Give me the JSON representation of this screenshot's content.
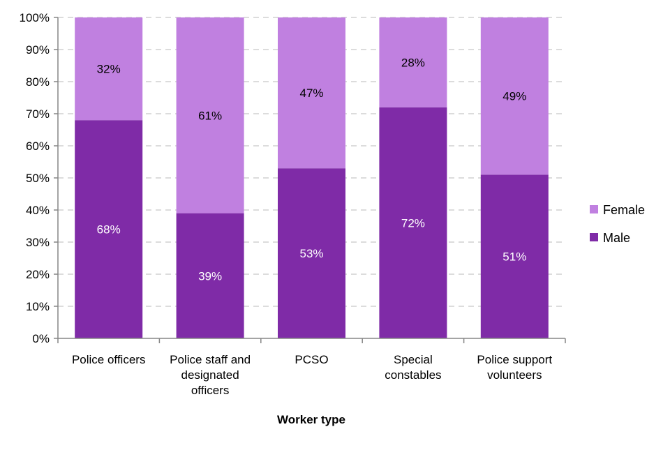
{
  "chart_data": {
    "type": "bar",
    "stacked": true,
    "percent_stacked": true,
    "categories": [
      [
        "Police officers"
      ],
      [
        "Police staff and",
        "designated",
        "officers"
      ],
      [
        "PCSO"
      ],
      [
        "Special",
        "constables"
      ],
      [
        "Police support",
        "volunteers"
      ]
    ],
    "series": [
      {
        "name": "Male",
        "values": [
          68,
          39,
          53,
          72,
          51
        ],
        "labels": [
          "68%",
          "39%",
          "53%",
          "72%",
          "51%"
        ],
        "color": "#7f2ba7",
        "label_color": "#ffffff"
      },
      {
        "name": "Female",
        "values": [
          32,
          61,
          47,
          28,
          49
        ],
        "labels": [
          "32%",
          "61%",
          "47%",
          "28%",
          "49%"
        ],
        "color": "#c080e0",
        "label_color": "#000000"
      }
    ],
    "title": "",
    "xlabel": "Worker type",
    "ylabel": "",
    "ylim": [
      0,
      100
    ],
    "yticks": [
      "0%",
      "10%",
      "20%",
      "30%",
      "40%",
      "50%",
      "60%",
      "70%",
      "80%",
      "90%",
      "100%"
    ],
    "grid": "horizontal dashed",
    "legend": {
      "position": "right",
      "entries": [
        "Female",
        "Male"
      ]
    }
  }
}
